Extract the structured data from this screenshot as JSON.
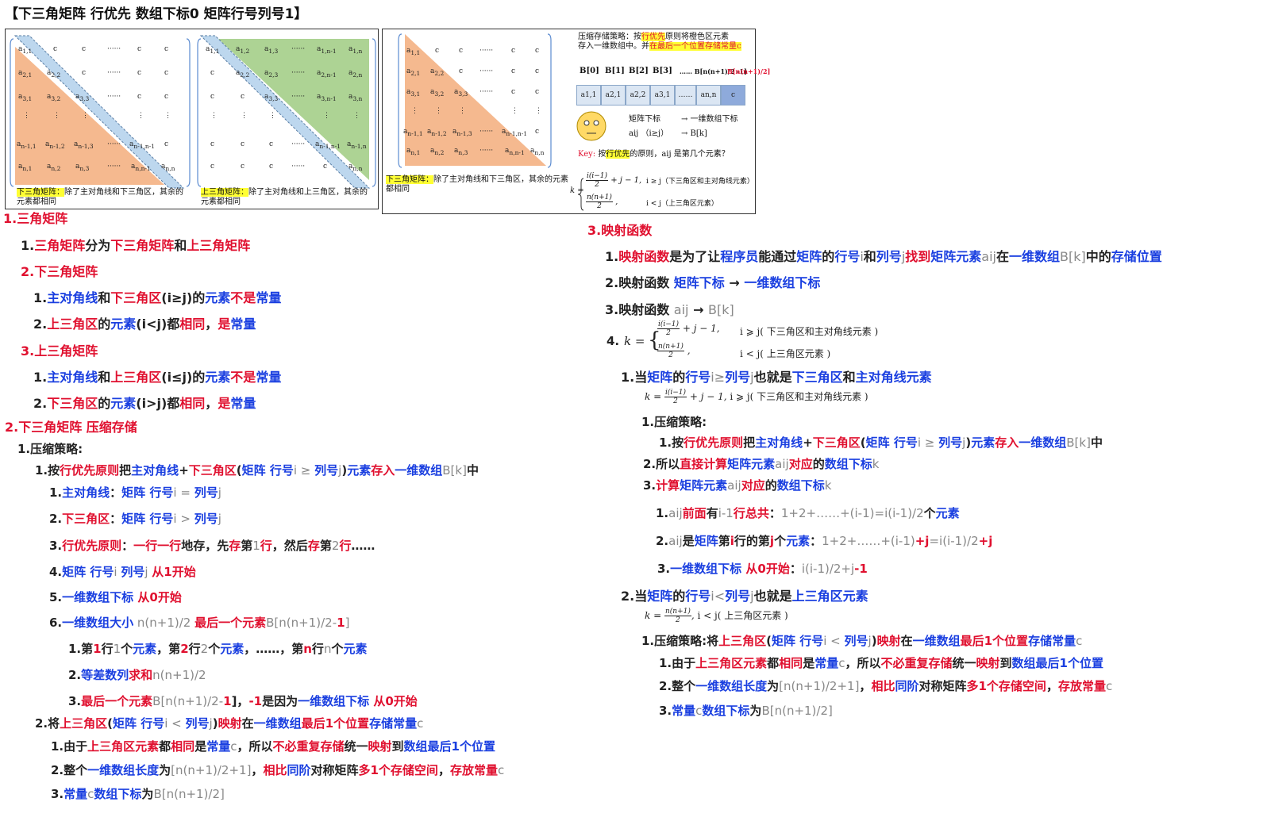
{
  "title": "【下三角矩阵 行优先 数组下标0 矩阵行号列号1】",
  "figure": {
    "cell_c": "c",
    "dots": "······",
    "vdots": "⋮",
    "lower_caption_hl": "下三角矩阵：",
    "lower_caption_rest": "除了主对角线和下三角区，其余的元素都相同",
    "upper_caption_hl": "上三角矩阵：",
    "upper_caption_rest": "除了主对角线和上三角区，其余的元素都相同",
    "strategy_line1": "压缩存储策略：按",
    "strategy_hl": "行优先",
    "strategy_line1b": "原则将橙色区元素",
    "strategy_line2": "存入一维数组中。并",
    "strategy_hl2": "在最后一个位置存储常量c",
    "b_labels": [
      "B[0]",
      "B[1]",
      "B[2]",
      "B[3]",
      "…… B[n(n+1)/2 -1]",
      "B[n(n+1)/2]"
    ],
    "b_cells": [
      "a1,1",
      "a2,1",
      "a2,2",
      "a3,1",
      "……",
      "an,n",
      "c"
    ],
    "map_row1_a": "矩阵下标",
    "map_row1_b": "→ 一维数组下标",
    "map_row2_a": "aij （i≥j）",
    "map_row2_b": "→  B[k]",
    "key_label": "Key:",
    "key_text1": "按",
    "key_hl": "行优先",
    "key_text2": "的原则，aij 是第几个元素？",
    "formula_case1": "i ≥ j（下三角区和主对角线元素）",
    "formula_case2": "i < j（上三角区元素）"
  },
  "left": {
    "s1": "1.三角矩阵",
    "s1_1a": "1.",
    "s1_1b": "三角矩阵",
    "s1_1c": "分为",
    "s1_1d": "下三角矩阵",
    "s1_1e": "和",
    "s1_1f": "上三角矩阵",
    "s1_2": "2.下三角矩阵",
    "s1_2_1": [
      "1.",
      "主对角线",
      "和",
      "下三角区",
      "(i≥j)",
      "的",
      "元素",
      "不是",
      "常量"
    ],
    "s1_2_2": [
      "2.",
      "上三角区",
      "的",
      "元素",
      "(i<j)",
      "都",
      "相同",
      "，",
      "是",
      "常量"
    ],
    "s1_3": "3.上三角矩阵",
    "s1_3_1": [
      "1.",
      "主对角线",
      "和",
      "上三角区",
      "(i≤j)",
      "的",
      "元素",
      "不是",
      "常量"
    ],
    "s1_3_2": [
      "2.",
      "下三角区",
      "的",
      "元素",
      "(i>j)",
      "都",
      "相同",
      "，",
      "是",
      "常量"
    ],
    "s2": "2.下三角矩阵 压缩存储",
    "s2_1": "1.压缩策略:",
    "s2_1_1": [
      "1.按",
      "行优先原则",
      "把",
      "主对角线",
      "+",
      "下三角区",
      "(",
      "矩阵 行号",
      "i ≥ ",
      "列号",
      "j",
      ")",
      "元素",
      "存入",
      "一维数组",
      "B[k]",
      "中"
    ],
    "s2_1_1_1": [
      "1.",
      "主对角线",
      "：",
      "矩阵 行号",
      "i = ",
      "列号",
      "j"
    ],
    "s2_1_1_2": [
      "2.",
      "下三角区",
      "：",
      "矩阵 行号",
      "i > ",
      "列号",
      "j"
    ],
    "s2_1_1_3": [
      "3.",
      "行优先原则",
      "：",
      "一行一行",
      "地存，先",
      "存",
      "第",
      "1",
      "行",
      "，然后",
      "存",
      "第",
      "2",
      "行",
      "……"
    ],
    "s2_1_1_4": [
      "4.",
      "矩阵 行号",
      "i ",
      "列号",
      "j ",
      "从1开始"
    ],
    "s2_1_1_5": [
      "5.",
      "一维数组下标",
      " 从0开始"
    ],
    "s2_1_1_6": [
      "6.",
      "一维数组大小",
      " n(n+1)/2 ",
      "最后一个元素",
      "B[n(n+1)/2-",
      "1",
      "]"
    ],
    "s2_1_1_6_1": [
      "1.第",
      "1",
      "行",
      "1",
      "个",
      "元素",
      "，第",
      "2",
      "行",
      "2",
      "个",
      "元素",
      "，……，第",
      "n",
      "行",
      "n",
      "个",
      "元素"
    ],
    "s2_1_1_6_2": [
      "2.",
      "等差数列",
      "求和",
      "n(n+1)/2"
    ],
    "s2_1_1_6_3": [
      "3.",
      "最后一个元素",
      "B[n(n+1)/2-",
      "1",
      "]，",
      "-1",
      "是因为",
      "一维数组下标",
      " 从0开始"
    ],
    "s2_1_2": [
      "2.将",
      "上三角区",
      "(",
      "矩阵 行号",
      "i < ",
      "列号",
      "j",
      ")",
      "映射",
      "在",
      "一维数组",
      "最后1个位置",
      "存储常量",
      "c"
    ],
    "s2_1_2_1": [
      "1.由于",
      "上三角区元素",
      "都",
      "相同",
      "是",
      "常量",
      "c",
      "，所以",
      "不必重复存储",
      "统一",
      "映射",
      "到",
      "数组最后1个位置"
    ],
    "s2_1_2_2": [
      "2.整个",
      "一维数组长度",
      "为",
      "[n(n+1)/2+1]",
      "，",
      "相比",
      "同阶",
      "对称矩阵",
      "多1个存储空间",
      "，",
      "存放常量",
      "c"
    ],
    "s2_1_2_3": [
      "3.",
      "常量",
      "c",
      "数组下标",
      "为",
      "B[n(n+1)/2]"
    ]
  },
  "right": {
    "s3": "3.映射函数",
    "s3_1": [
      "1.",
      "映射函数",
      "是为了让",
      "程序员",
      "能通过",
      "矩阵",
      "的",
      "行号",
      "i",
      "和",
      "列号",
      "j",
      "找到",
      "矩阵元素",
      "aij",
      "在",
      "一维数组",
      "B[k]",
      "中的",
      "存储位置"
    ],
    "s3_2": [
      "2.映射函数 ",
      "矩阵下标",
      " → ",
      "一维数组下标"
    ],
    "s3_3": [
      "3.映射函数 ",
      "aij",
      " → ",
      "B[k]"
    ],
    "s3_4_label": "4.",
    "s3_4_case1": "i ⩾ j( 下三角区和主对角线元素 )",
    "s3_4_case2": "i < j( 上三角区元素 )",
    "s3_4_1": [
      "1.当",
      "矩阵",
      "的",
      "行号",
      "i≥",
      "列号",
      "j",
      "也就是",
      "下三角区",
      "和",
      "主对角线元素"
    ],
    "s3_4_1_f": "i ⩾ j( 下三角区和主对角线元素 )",
    "s3_4_1_1": "1.压缩策略:",
    "s3_4_1_1_1": [
      "1.按",
      "行优先原则",
      "把",
      "主对角线",
      "+",
      "下三角区",
      "(",
      "矩阵 行号",
      "i ≥ ",
      "列号",
      "j",
      ")",
      "元素",
      "存入",
      "一维数组",
      "B[k]",
      "中"
    ],
    "s3_4_1_2": [
      "2.所以",
      "直接计算",
      "矩阵元素",
      "aij",
      "对应",
      "的",
      "数组下标",
      "k"
    ],
    "s3_4_1_3": [
      "3.",
      "计算",
      "矩阵元素",
      "aij",
      "对应",
      "的",
      "数组下标",
      "k"
    ],
    "s3_4_1_3_1": [
      "1.",
      "aij",
      "前面",
      "有",
      "i-1",
      "行",
      "总共",
      "：",
      "1+2+……+(i-1)=i(i-1)/2",
      "个",
      "元素"
    ],
    "s3_4_1_3_2": [
      "2.",
      "aij",
      "是",
      "矩阵",
      "第",
      "i",
      "行",
      "的第",
      "j",
      "个",
      "元素",
      "：",
      "1+2+……+(i-1)",
      "+j",
      "=i(i-1)/2",
      "+j"
    ],
    "s3_4_1_3_3": [
      "3.",
      "一维数组下标",
      " 从0开始",
      "：",
      "i(i-1)/2+j",
      "-1"
    ],
    "s3_4_2": [
      "2.当",
      "矩阵",
      "的",
      "行号",
      "i<",
      "列号",
      "j",
      "也就是",
      "上三角区元素"
    ],
    "s3_4_2_f": "i < j( 上三角区元素 )",
    "s3_4_2_1": [
      "1.压缩策略:将",
      "上三角区",
      "(",
      "矩阵 行号",
      "i < ",
      "列号",
      "j",
      ")",
      "映射",
      "在",
      "一维数组",
      "最后1个位置",
      "存储常量",
      "c"
    ],
    "s3_4_2_1_1": [
      "1.由于",
      "上三角区元素",
      "都",
      "相同",
      "是",
      "常量",
      "c",
      "，所以",
      "不必重复存储",
      "统一",
      "映射",
      "到",
      "数组最后1个位置"
    ],
    "s3_4_2_1_2": [
      "2.整个",
      "一维数组长度",
      "为",
      "[n(n+1)/2+1]",
      "，",
      "相比",
      "同阶",
      "对称矩阵",
      "多1个存储空间",
      "，",
      "存放常量",
      "c"
    ],
    "s3_4_2_1_3": [
      "3.",
      "常量",
      "c",
      "数组下标",
      "为",
      "B[n(n+1)/2]"
    ]
  },
  "colors": {
    "red": "#e0102f",
    "blue": "#1a3fe0",
    "orange": "#f4b183",
    "green": "#a9d18e",
    "diag": "#bdd7ee"
  }
}
